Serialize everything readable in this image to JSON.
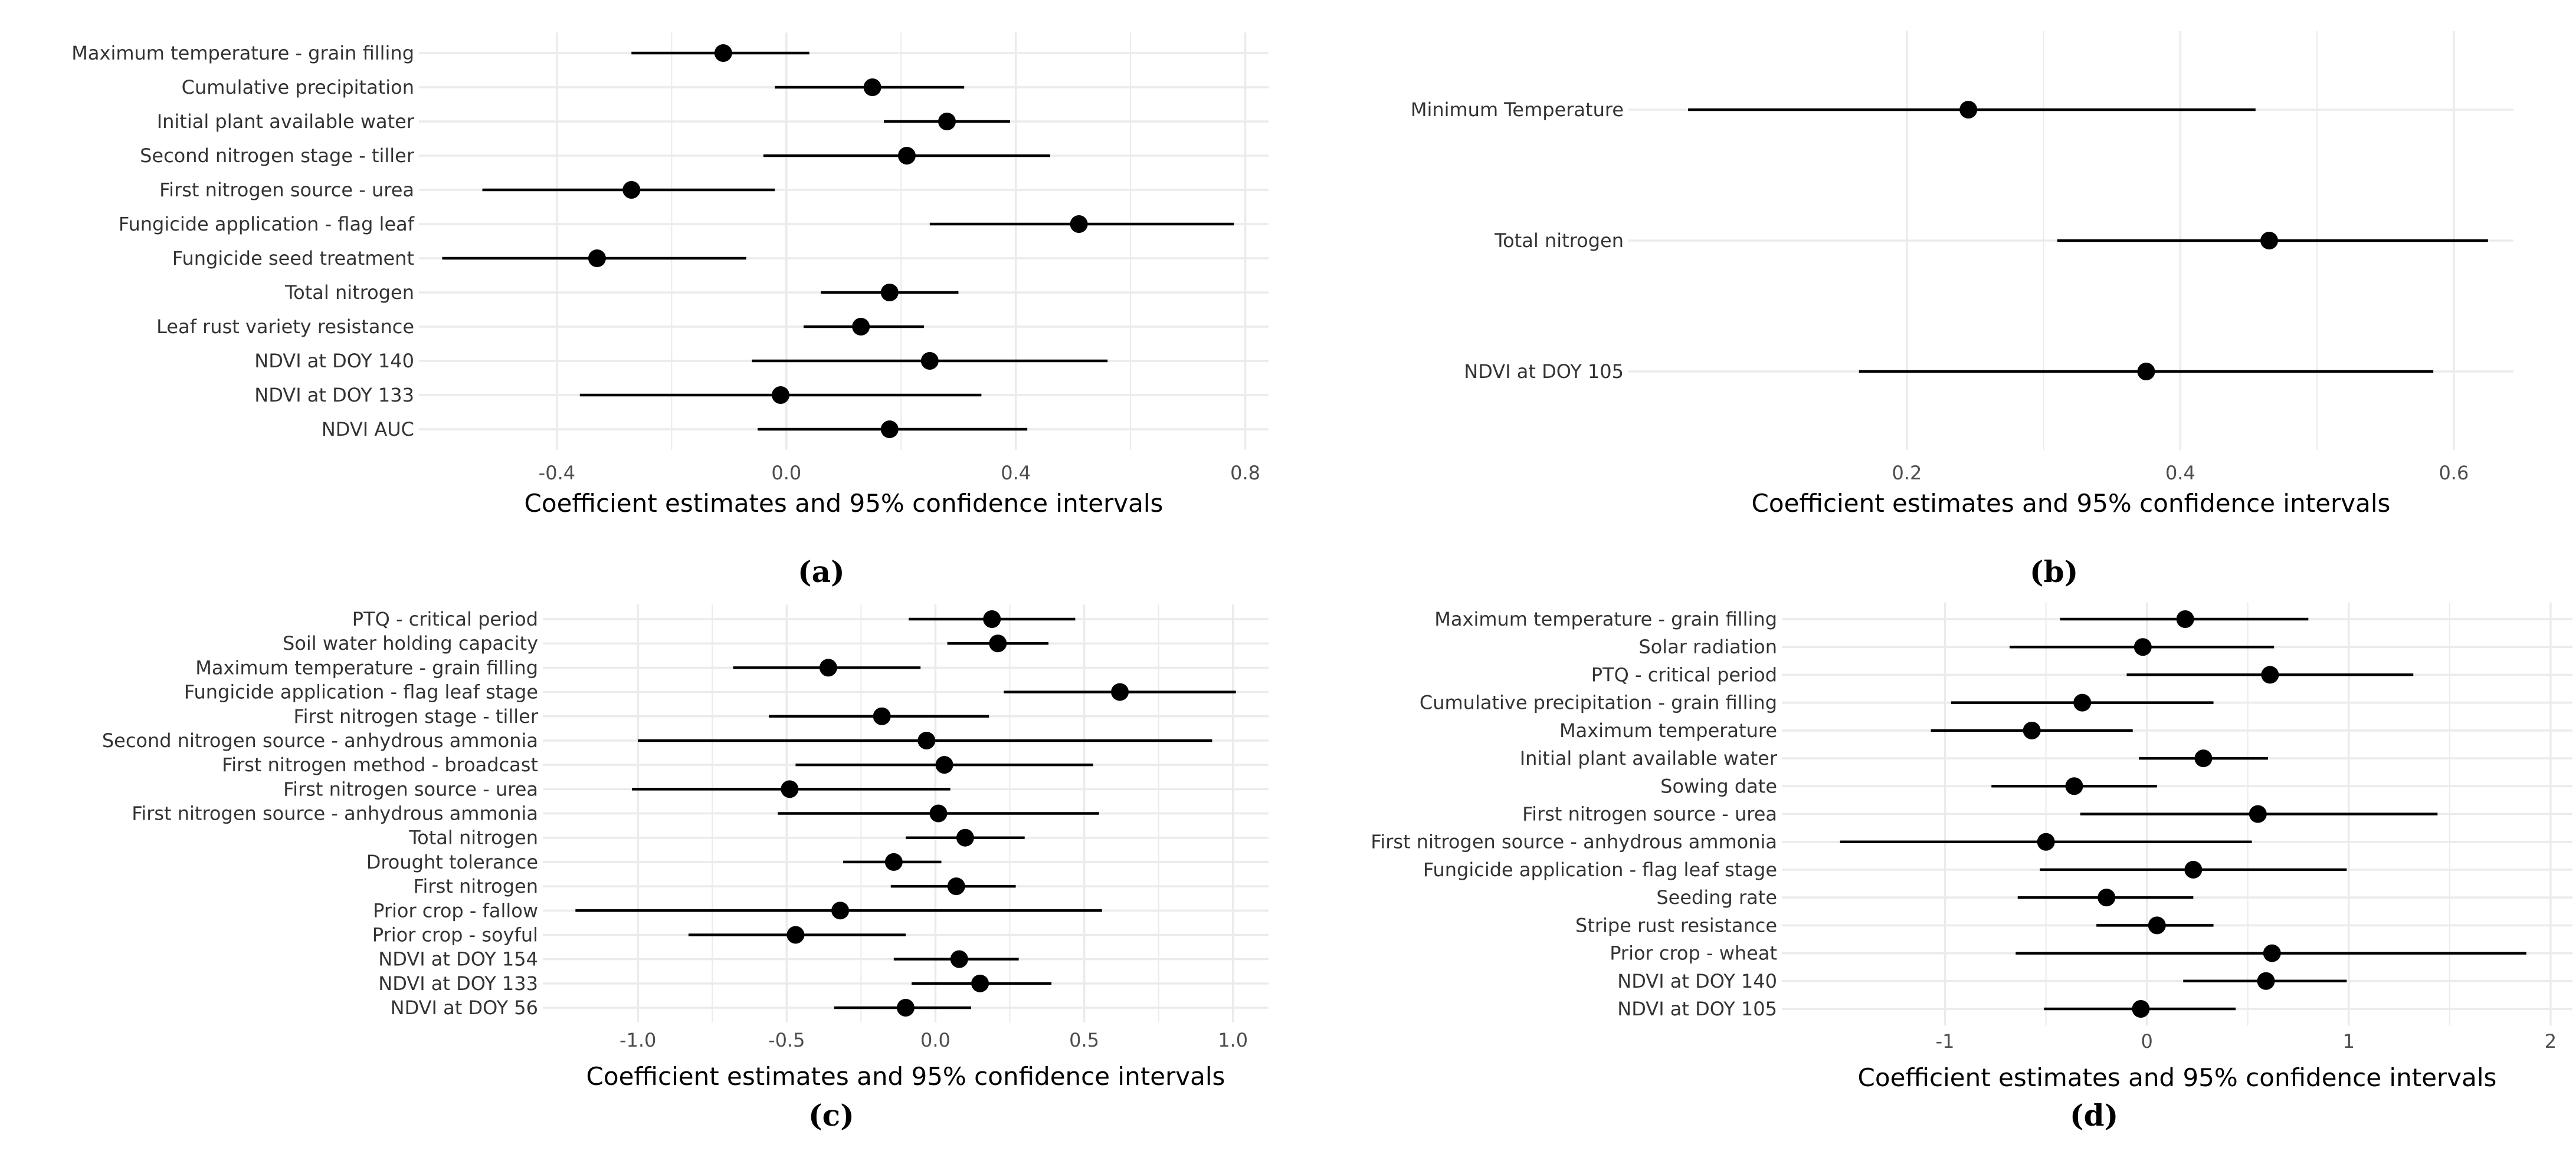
{
  "colors": {
    "grid": "#ebebeb",
    "marker": "#000000",
    "interval": "#000000",
    "label": "#333333"
  },
  "charts": [
    {
      "id": "a",
      "tag": "(a)",
      "chart_data": {
        "type": "scatter",
        "subtype": "coefficient-plot-with-95-ci",
        "xlabel": "Coefficient estimates and 95% confidence intervals",
        "xlim": [
          -0.62,
          0.82
        ],
        "xticks": [
          -0.4,
          0.0,
          0.4,
          0.8
        ],
        "xtick_labels": [
          "-0.4",
          "0.0",
          "0.4",
          "0.8"
        ],
        "grid": true,
        "variables": [
          "Maximum temperature - grain filling",
          "Cumulative precipitation",
          "Initial plant available water",
          "Second nitrogen stage - tiller",
          "First nitrogen source - urea",
          "Fungicide application - flag leaf",
          "Fungicide seed treatment",
          "Total nitrogen",
          "Leaf rust variety resistance",
          "NDVI at DOY 140",
          "NDVI at DOY 133",
          "NDVI AUC"
        ],
        "estimate": [
          -0.11,
          0.15,
          0.28,
          0.21,
          -0.27,
          0.51,
          -0.33,
          0.18,
          0.13,
          0.25,
          -0.01,
          0.18
        ],
        "lower": [
          -0.27,
          -0.02,
          0.17,
          -0.04,
          -0.53,
          0.25,
          -0.6,
          0.06,
          0.03,
          -0.06,
          -0.36,
          -0.05
        ],
        "upper": [
          0.04,
          0.31,
          0.39,
          0.46,
          -0.02,
          0.78,
          -0.07,
          0.3,
          0.24,
          0.56,
          0.34,
          0.42
        ]
      }
    },
    {
      "id": "b",
      "tag": "(b)",
      "chart_data": {
        "type": "scatter",
        "subtype": "coefficient-plot-with-95-ci",
        "xlabel": "Coefficient estimates and 95% confidence intervals",
        "xlim": [
          0.005,
          0.635
        ],
        "xticks": [
          0.2,
          0.4,
          0.6
        ],
        "xtick_labels": [
          "0.2",
          "0.4",
          "0.6"
        ],
        "grid": true,
        "variables": [
          "Minimum Temperature",
          "Total nitrogen",
          "NDVI at DOY 105"
        ],
        "estimate": [
          0.245,
          0.465,
          0.375
        ],
        "lower": [
          0.04,
          0.31,
          0.165
        ],
        "upper": [
          0.455,
          0.625,
          0.585
        ]
      }
    },
    {
      "id": "c",
      "tag": "(c)",
      "chart_data": {
        "type": "scatter",
        "subtype": "coefficient-plot-with-95-ci",
        "xlabel": "Coefficient estimates and 95% confidence intervals",
        "xlim": [
          -1.28,
          1.08
        ],
        "xticks": [
          -1.0,
          -0.5,
          0.0,
          0.5,
          1.0
        ],
        "xtick_labels": [
          "-1.0",
          "-0.5",
          "0.0",
          "0.5",
          "1.0"
        ],
        "grid": true,
        "variables": [
          "PTQ - critical period",
          "Soil water holding capacity",
          "Maximum temperature - grain filling",
          "Fungicide application - flag leaf stage",
          "First nitrogen stage - tiller",
          "Second nitrogen source - anhydrous ammonia",
          "First nitrogen method - broadcast",
          "First nitrogen source - urea",
          "First nitrogen source - anhydrous ammonia",
          "Total nitrogen",
          "Drought tolerance",
          "First nitrogen",
          "Prior crop - fallow",
          "Prior crop - soyful",
          "NDVI at DOY 154",
          "NDVI at DOY 133",
          "NDVI at DOY 56"
        ],
        "estimate": [
          0.19,
          0.21,
          -0.36,
          0.62,
          -0.18,
          -0.03,
          0.03,
          -0.49,
          0.01,
          0.1,
          -0.14,
          0.07,
          -0.32,
          -0.47,
          0.08,
          0.15,
          -0.1
        ],
        "lower": [
          -0.09,
          0.04,
          -0.68,
          0.23,
          -0.56,
          -1.0,
          -0.47,
          -1.02,
          -0.53,
          -0.1,
          -0.31,
          -0.15,
          -1.21,
          -0.83,
          -0.14,
          -0.08,
          -0.34
        ],
        "upper": [
          0.47,
          0.38,
          -0.05,
          1.01,
          0.18,
          0.93,
          0.53,
          0.05,
          0.55,
          0.3,
          0.02,
          0.27,
          0.56,
          -0.1,
          0.28,
          0.39,
          0.12
        ]
      }
    },
    {
      "id": "d",
      "tag": "(d)",
      "chart_data": {
        "type": "scatter",
        "subtype": "coefficient-plot-with-95-ci",
        "xlabel": "Coefficient estimates and 95% confidence intervals",
        "xlim": [
          -1.75,
          2.05
        ],
        "xticks": [
          -1,
          0,
          1,
          2
        ],
        "xtick_labels": [
          "-1",
          "0",
          "1",
          "2"
        ],
        "grid": true,
        "variables": [
          "Maximum temperature - grain filling",
          "Solar radiation",
          "PTQ - critical period",
          "Cumulative precipitation - grain filling",
          "Maximum temperature",
          "Initial plant available water",
          "Sowing date",
          "First nitrogen source - urea",
          "First nitrogen source - anhydrous ammonia",
          "Fungicide application - flag leaf stage",
          "Seeding rate",
          "Stripe rust resistance",
          "Prior crop - wheat",
          "NDVI at DOY 140",
          "NDVI at DOY 105"
        ],
        "estimate": [
          0.19,
          -0.02,
          0.61,
          -0.32,
          -0.57,
          0.28,
          -0.36,
          0.55,
          -0.5,
          0.23,
          -0.2,
          0.05,
          0.62,
          0.59,
          -0.03
        ],
        "lower": [
          -0.43,
          -0.68,
          -0.1,
          -0.97,
          -1.07,
          -0.04,
          -0.77,
          -0.33,
          -1.52,
          -0.53,
          -0.64,
          -0.25,
          -0.65,
          0.18,
          -0.51
        ],
        "upper": [
          0.8,
          0.63,
          1.32,
          0.33,
          -0.07,
          0.6,
          0.05,
          1.44,
          0.52,
          0.99,
          0.23,
          0.33,
          1.88,
          0.99,
          0.44
        ]
      }
    }
  ]
}
